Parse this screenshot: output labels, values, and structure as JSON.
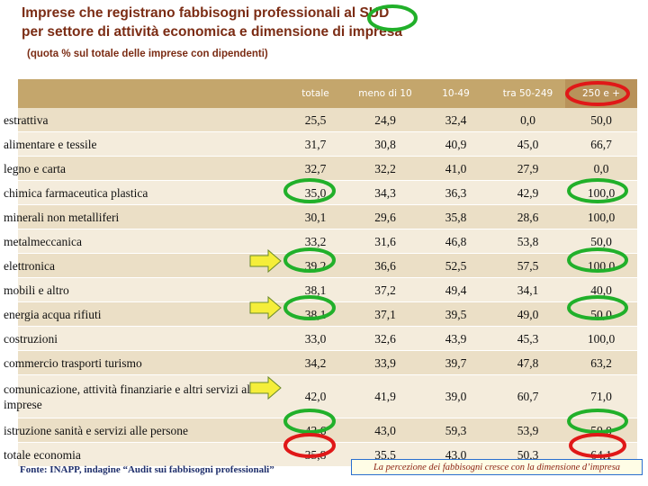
{
  "header": {
    "title_line1": "Imprese che registrano fabbisogni professionali al SUD",
    "title_line2": "per settore di attività economica e dimensione di impresa",
    "subtitle": "(quota % sul totale delle imprese con dipendenti)"
  },
  "table": {
    "columns": [
      "totale",
      "meno di 10",
      "10-49",
      "tra 50-249",
      "250 e +"
    ],
    "rows": [
      [
        "estrattiva",
        "25,5",
        "24,9",
        "32,4",
        "0,0",
        "50,0"
      ],
      [
        "alimentare e tessile",
        "31,7",
        "30,8",
        "40,9",
        "45,0",
        "66,7"
      ],
      [
        "legno e carta",
        "32,7",
        "32,2",
        "41,0",
        "27,9",
        "0,0"
      ],
      [
        "chimica farmaceutica plastica",
        "35,0",
        "34,3",
        "36,3",
        "42,9",
        "100,0"
      ],
      [
        "minerali non metalliferi",
        "30,1",
        "29,6",
        "35,8",
        "28,6",
        "100,0"
      ],
      [
        "metalmeccanica",
        "33,2",
        "31,6",
        "46,8",
        "53,8",
        "50,0"
      ],
      [
        "elettronica",
        "39,2",
        "36,6",
        "52,5",
        "57,5",
        "100,0"
      ],
      [
        "mobili e altro",
        "38,1",
        "37,2",
        "49,4",
        "34,1",
        "40,0"
      ],
      [
        "energia acqua rifiuti",
        "38,1",
        "37,1",
        "39,5",
        "49,0",
        "50,0"
      ],
      [
        "costruzioni",
        "33,0",
        "32,6",
        "43,9",
        "45,3",
        "100,0"
      ],
      [
        "commercio trasporti turismo",
        "34,2",
        "33,9",
        "39,7",
        "47,8",
        "63,2"
      ],
      [
        "comunicazione, attività finanziarie e altri servizi alle imprese",
        "42,0",
        "41,9",
        "39,0",
        "60,7",
        "71,0"
      ],
      [
        "istruzione sanità e servizi alle persone",
        "43,6",
        "43,0",
        "59,3",
        "53,9",
        "50,0"
      ],
      [
        "totale economia",
        "35,8",
        "35,5",
        "43,0",
        "50,3",
        "64,1"
      ]
    ]
  },
  "source": "Fonte: INAPP, indagine “Audit sui fabbisogni professionali”",
  "callout": "La percezione dei fabbisogni cresce con la dimensione d’impresa"
}
